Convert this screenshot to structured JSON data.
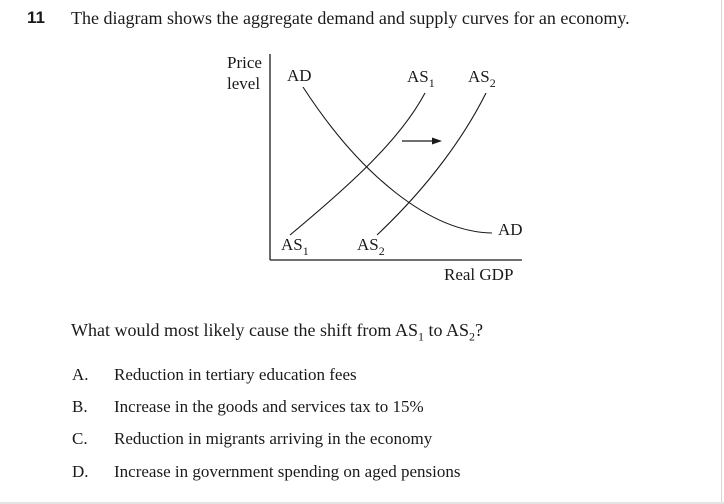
{
  "question": {
    "number": "11",
    "stem": "The diagram shows the aggregate demand and supply curves for an economy.",
    "prompt_parts": [
      "What would most likely cause the shift from AS",
      "1",
      " to AS",
      "2",
      "?"
    ]
  },
  "diagram": {
    "y_axis_label_line1": "Price",
    "y_axis_label_line2": "level",
    "x_axis_label": "Real GDP",
    "curve_labels": {
      "ad_top": "AD",
      "ad_end": "AD",
      "as1_main": "AS",
      "as1_sub": "1",
      "as2_main": "AS",
      "as2_sub": "2"
    }
  },
  "options": [
    {
      "letter": "A.",
      "text": "Reduction in tertiary education fees"
    },
    {
      "letter": "B.",
      "text": "Increase in the goods and services tax to 15%"
    },
    {
      "letter": "C.",
      "text": "Reduction in migrants arriving in the economy"
    },
    {
      "letter": "D.",
      "text": "Increase in government spending on aged pensions"
    }
  ]
}
